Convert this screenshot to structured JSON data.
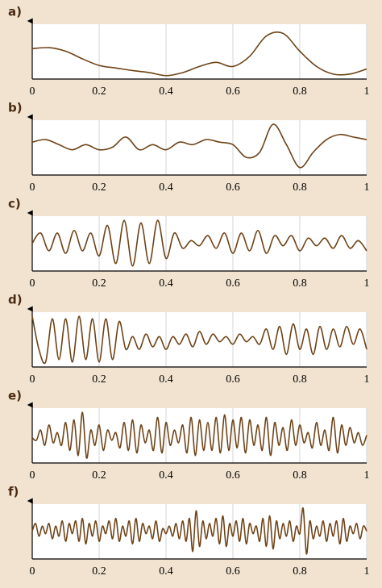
{
  "chart_data": [
    {
      "type": "line",
      "title": "a)",
      "xlim": [
        0,
        1
      ],
      "ylim": [
        0,
        1
      ],
      "xticks": [
        0,
        0.2,
        0.4,
        0.6,
        0.8,
        1
      ],
      "grid": true,
      "color": "#6e4317",
      "x": [
        0,
        0.05,
        0.1,
        0.15,
        0.2,
        0.25,
        0.3,
        0.35,
        0.4,
        0.45,
        0.5,
        0.55,
        0.6,
        0.65,
        0.7,
        0.75,
        0.8,
        0.85,
        0.9,
        0.95,
        1
      ],
      "values": [
        0.55,
        0.57,
        0.5,
        0.35,
        0.22,
        0.17,
        0.12,
        0.08,
        0.02,
        0.08,
        0.2,
        0.28,
        0.2,
        0.4,
        0.8,
        0.85,
        0.5,
        0.2,
        0.05,
        0.05,
        0.15
      ]
    },
    {
      "type": "line",
      "title": "b)",
      "xlim": [
        0,
        1
      ],
      "ylim": [
        0,
        1
      ],
      "xticks": [
        0,
        0.2,
        0.4,
        0.6,
        0.8,
        1
      ],
      "grid": true,
      "color": "#6e4317",
      "x": [
        0,
        0.04,
        0.08,
        0.12,
        0.16,
        0.2,
        0.24,
        0.28,
        0.32,
        0.36,
        0.4,
        0.44,
        0.48,
        0.52,
        0.56,
        0.6,
        0.64,
        0.68,
        0.72,
        0.76,
        0.8,
        0.84,
        0.88,
        0.92,
        0.96,
        1
      ],
      "values": [
        0.6,
        0.65,
        0.55,
        0.45,
        0.55,
        0.45,
        0.5,
        0.7,
        0.45,
        0.55,
        0.45,
        0.6,
        0.55,
        0.65,
        0.6,
        0.55,
        0.3,
        0.4,
        0.95,
        0.55,
        0.1,
        0.4,
        0.65,
        0.75,
        0.7,
        0.65
      ]
    },
    {
      "type": "line",
      "title": "c)",
      "xlim": [
        0,
        1
      ],
      "ylim": [
        0,
        1
      ],
      "xticks": [
        0,
        0.2,
        0.4,
        0.6,
        0.8,
        1
      ],
      "grid": true,
      "color": "#6e4317",
      "x": [
        0,
        0.025,
        0.05,
        0.075,
        0.1,
        0.125,
        0.15,
        0.175,
        0.2,
        0.225,
        0.25,
        0.275,
        0.3,
        0.325,
        0.35,
        0.375,
        0.4,
        0.425,
        0.45,
        0.475,
        0.5,
        0.525,
        0.55,
        0.575,
        0.6,
        0.625,
        0.65,
        0.675,
        0.7,
        0.725,
        0.75,
        0.775,
        0.8,
        0.825,
        0.85,
        0.875,
        0.9,
        0.925,
        0.95,
        0.975,
        1
      ],
      "values": [
        0.5,
        0.7,
        0.35,
        0.7,
        0.3,
        0.75,
        0.35,
        0.7,
        0.25,
        0.85,
        0.1,
        0.95,
        0.05,
        0.9,
        0.1,
        0.95,
        0.2,
        0.7,
        0.4,
        0.55,
        0.45,
        0.65,
        0.4,
        0.7,
        0.3,
        0.7,
        0.35,
        0.75,
        0.3,
        0.65,
        0.45,
        0.65,
        0.35,
        0.6,
        0.45,
        0.6,
        0.4,
        0.65,
        0.4,
        0.55,
        0.35
      ]
    },
    {
      "type": "line",
      "title": "d)",
      "xlim": [
        0,
        1
      ],
      "ylim": [
        0,
        1
      ],
      "xticks": [
        0,
        0.2,
        0.4,
        0.6,
        0.8,
        1
      ],
      "grid": true,
      "color": "#6e4317",
      "x": [
        0,
        0.02,
        0.04,
        0.06,
        0.08,
        0.1,
        0.12,
        0.14,
        0.16,
        0.18,
        0.2,
        0.22,
        0.24,
        0.26,
        0.28,
        0.3,
        0.32,
        0.34,
        0.36,
        0.38,
        0.4,
        0.42,
        0.44,
        0.46,
        0.48,
        0.5,
        0.52,
        0.54,
        0.56,
        0.58,
        0.6,
        0.62,
        0.64,
        0.66,
        0.68,
        0.7,
        0.72,
        0.74,
        0.76,
        0.78,
        0.8,
        0.82,
        0.84,
        0.86,
        0.88,
        0.9,
        0.92,
        0.94,
        0.96,
        0.98,
        1
      ],
      "values": [
        0.95,
        0.3,
        0.05,
        0.9,
        0.1,
        0.9,
        0.05,
        0.95,
        0.1,
        0.9,
        0.05,
        0.9,
        0.1,
        0.85,
        0.3,
        0.55,
        0.3,
        0.6,
        0.35,
        0.55,
        0.3,
        0.55,
        0.4,
        0.6,
        0.35,
        0.65,
        0.4,
        0.6,
        0.45,
        0.55,
        0.4,
        0.6,
        0.45,
        0.55,
        0.4,
        0.7,
        0.3,
        0.75,
        0.2,
        0.8,
        0.3,
        0.7,
        0.2,
        0.75,
        0.3,
        0.7,
        0.35,
        0.75,
        0.4,
        0.7,
        0.3
      ]
    },
    {
      "type": "line",
      "title": "e)",
      "xlim": [
        0,
        1
      ],
      "ylim": [
        0,
        1
      ],
      "xticks": [
        0,
        0.2,
        0.4,
        0.6,
        0.8,
        1
      ],
      "grid": true,
      "color": "#6e4317",
      "x": [
        0,
        0.0125,
        0.025,
        0.0375,
        0.05,
        0.0625,
        0.075,
        0.0875,
        0.1,
        0.1125,
        0.125,
        0.1375,
        0.15,
        0.1625,
        0.175,
        0.1875,
        0.2,
        0.2125,
        0.225,
        0.2375,
        0.25,
        0.2625,
        0.275,
        0.2875,
        0.3,
        0.3125,
        0.325,
        0.3375,
        0.35,
        0.3625,
        0.375,
        0.3875,
        0.4,
        0.4125,
        0.425,
        0.4375,
        0.45,
        0.4625,
        0.475,
        0.4875,
        0.5,
        0.5125,
        0.525,
        0.5375,
        0.55,
        0.5625,
        0.575,
        0.5875,
        0.6,
        0.6125,
        0.625,
        0.6375,
        0.65,
        0.6625,
        0.675,
        0.6875,
        0.7,
        0.7125,
        0.725,
        0.7375,
        0.75,
        0.7625,
        0.775,
        0.7875,
        0.8,
        0.8125,
        0.825,
        0.8375,
        0.85,
        0.8625,
        0.875,
        0.8875,
        0.9,
        0.9125,
        0.925,
        0.9375,
        0.95,
        0.9625,
        0.975,
        0.9875,
        1
      ],
      "values": [
        0.45,
        0.4,
        0.6,
        0.3,
        0.7,
        0.35,
        0.55,
        0.3,
        0.75,
        0.2,
        0.8,
        0.1,
        0.95,
        0.05,
        0.6,
        0.3,
        0.7,
        0.2,
        0.6,
        0.4,
        0.55,
        0.25,
        0.75,
        0.2,
        0.8,
        0.15,
        0.7,
        0.35,
        0.6,
        0.2,
        0.85,
        0.15,
        0.75,
        0.3,
        0.6,
        0.35,
        0.7,
        0.15,
        0.85,
        0.1,
        0.8,
        0.2,
        0.75,
        0.2,
        0.85,
        0.15,
        0.9,
        0.2,
        0.8,
        0.25,
        0.85,
        0.15,
        0.8,
        0.3,
        0.7,
        0.2,
        0.85,
        0.1,
        0.75,
        0.3,
        0.65,
        0.2,
        0.8,
        0.3,
        0.7,
        0.35,
        0.55,
        0.25,
        0.75,
        0.3,
        0.6,
        0.2,
        0.85,
        0.15,
        0.7,
        0.3,
        0.65,
        0.35,
        0.55,
        0.3,
        0.5
      ]
    },
    {
      "type": "line",
      "title": "f)",
      "xlim": [
        0,
        1
      ],
      "ylim": [
        0,
        1
      ],
      "xticks": [
        0,
        0.2,
        0.4,
        0.6,
        0.8,
        1
      ],
      "grid": true,
      "color": "#6e4317",
      "x": [
        0,
        0.01,
        0.02,
        0.03,
        0.04,
        0.05,
        0.06,
        0.07,
        0.08,
        0.09,
        0.1,
        0.11,
        0.12,
        0.13,
        0.14,
        0.15,
        0.16,
        0.17,
        0.18,
        0.19,
        0.2,
        0.21,
        0.22,
        0.23,
        0.24,
        0.25,
        0.26,
        0.27,
        0.28,
        0.29,
        0.3,
        0.31,
        0.32,
        0.33,
        0.34,
        0.35,
        0.36,
        0.37,
        0.38,
        0.39,
        0.4,
        0.41,
        0.42,
        0.43,
        0.44,
        0.45,
        0.46,
        0.47,
        0.48,
        0.49,
        0.5,
        0.51,
        0.52,
        0.53,
        0.54,
        0.55,
        0.56,
        0.57,
        0.58,
        0.59,
        0.6,
        0.61,
        0.62,
        0.63,
        0.64,
        0.65,
        0.66,
        0.67,
        0.68,
        0.69,
        0.7,
        0.71,
        0.72,
        0.73,
        0.74,
        0.75,
        0.76,
        0.77,
        0.78,
        0.79,
        0.8,
        0.81,
        0.82,
        0.83,
        0.84,
        0.85,
        0.86,
        0.87,
        0.88,
        0.89,
        0.9,
        0.91,
        0.92,
        0.93,
        0.94,
        0.95,
        0.96,
        0.97,
        0.98,
        0.99,
        1
      ],
      "values": [
        0.5,
        0.65,
        0.4,
        0.6,
        0.45,
        0.65,
        0.35,
        0.6,
        0.4,
        0.7,
        0.3,
        0.65,
        0.45,
        0.7,
        0.3,
        0.75,
        0.25,
        0.65,
        0.4,
        0.7,
        0.3,
        0.6,
        0.45,
        0.7,
        0.35,
        0.75,
        0.3,
        0.6,
        0.4,
        0.7,
        0.25,
        0.75,
        0.3,
        0.65,
        0.45,
        0.6,
        0.35,
        0.7,
        0.3,
        0.55,
        0.45,
        0.6,
        0.4,
        0.65,
        0.35,
        0.7,
        0.3,
        0.75,
        0.1,
        0.9,
        0.2,
        0.7,
        0.35,
        0.65,
        0.4,
        0.75,
        0.25,
        0.8,
        0.2,
        0.65,
        0.4,
        0.7,
        0.3,
        0.75,
        0.25,
        0.65,
        0.45,
        0.6,
        0.3,
        0.75,
        0.2,
        0.8,
        0.15,
        0.7,
        0.35,
        0.65,
        0.4,
        0.7,
        0.3,
        0.6,
        0.45,
        0.95,
        0.05,
        0.7,
        0.35,
        0.6,
        0.4,
        0.7,
        0.3,
        0.65,
        0.4,
        0.7,
        0.25,
        0.75,
        0.3,
        0.6,
        0.45,
        0.65,
        0.35,
        0.6,
        0.5
      ]
    }
  ]
}
